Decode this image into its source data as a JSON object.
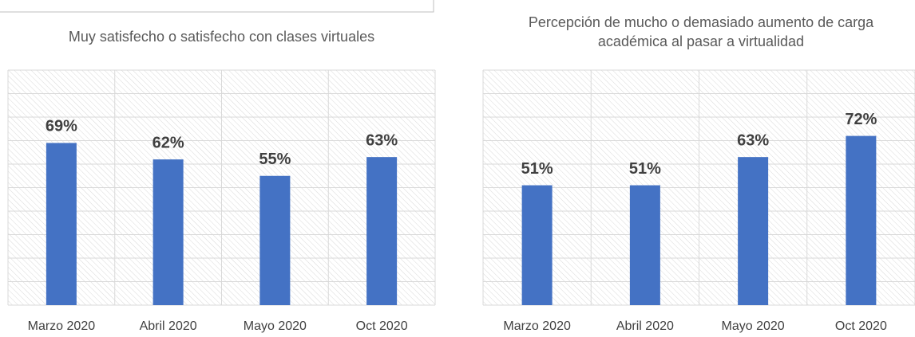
{
  "chart_data": [
    {
      "type": "bar",
      "title": "Muy satisfecho o satisfecho con clases virtuales",
      "categories": [
        "Marzo 2020",
        "Abril 2020",
        "Mayo 2020",
        "Oct 2020"
      ],
      "values": [
        69,
        62,
        55,
        63
      ],
      "value_labels": [
        "69%",
        "62%",
        "55%",
        "63%"
      ],
      "color": "#4472c4",
      "ylim": [
        0,
        100
      ],
      "yticks": [
        0,
        10,
        20,
        30,
        40,
        50,
        60,
        70,
        80,
        90,
        100
      ],
      "grid": true
    },
    {
      "type": "bar",
      "title": "Percepción de mucho o demasiado aumento de carga académica al pasar a virtualidad",
      "categories": [
        "Marzo 2020",
        "Abril 2020",
        "Mayo 2020",
        "Oct 2020"
      ],
      "values": [
        51,
        51,
        63,
        72
      ],
      "value_labels": [
        "51%",
        "51%",
        "63%",
        "72%"
      ],
      "color": "#4472c4",
      "ylim": [
        0,
        100
      ],
      "yticks": [
        0,
        10,
        20,
        30,
        40,
        50,
        60,
        70,
        80,
        90,
        100
      ],
      "grid": true
    }
  ]
}
